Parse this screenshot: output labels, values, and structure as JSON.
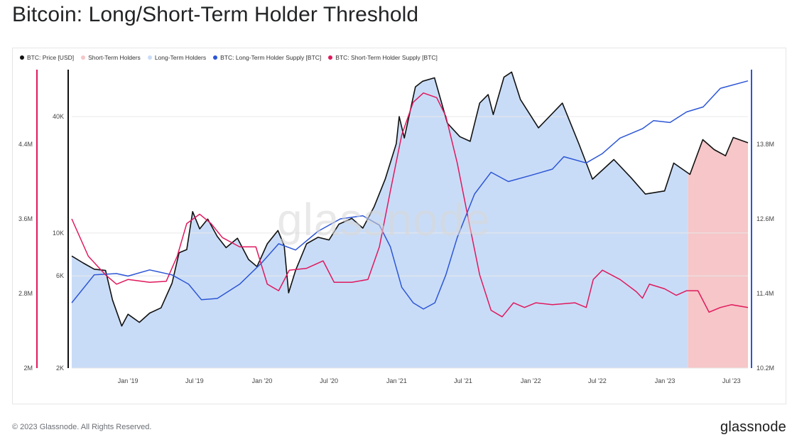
{
  "title": "Bitcoin: Long/Short-Term Holder Threshold",
  "footer": {
    "copyright": "© 2023 Glassnode. All Rights Reserved.",
    "logo": "glassnode"
  },
  "watermark": "glassnode",
  "legend": [
    {
      "label": "BTC: Price [USD]",
      "color": "#111111"
    },
    {
      "label": "Short-Term Holders",
      "color": "#f6c6c8"
    },
    {
      "label": "Long-Term Holders",
      "color": "#c9dcf7"
    },
    {
      "label": "BTC: Long-Term Holder Supply [BTC]",
      "color": "#2c56d6"
    },
    {
      "label": "BTC: Short-Term Holder Supply [BTC]",
      "color": "#e0185d"
    }
  ],
  "chart_data": {
    "type": "line",
    "x_ticks": [
      "Jan '19",
      "Jul '19",
      "Jan '20",
      "Jul '20",
      "Jan '21",
      "Jul '21",
      "Jan '22",
      "Jul '22",
      "Jan '23",
      "Jul '23"
    ],
    "x_range": [
      "2018-08-01",
      "2023-08-15"
    ],
    "axes": {
      "sth_supply_axis": {
        "side": "left-outer",
        "ticks": [
          "2M",
          "2.8M",
          "3.6M",
          "4.4M"
        ],
        "values": [
          2000000,
          2800000,
          3600000,
          4400000
        ],
        "range": [
          2000000,
          5200000
        ],
        "color": "#e0185d"
      },
      "price_axis": {
        "side": "left-inner",
        "scale": "log",
        "ticks": [
          "2K",
          "6K",
          "10K",
          "40K"
        ],
        "values": [
          2000,
          6000,
          10000,
          40000
        ],
        "range": [
          2000,
          70000
        ],
        "color": "#111111"
      },
      "lth_supply_axis": {
        "side": "right",
        "ticks": [
          "10.2M",
          "11.4M",
          "12.6M",
          "13.8M"
        ],
        "values": [
          10200000,
          11400000,
          12600000,
          13800000
        ],
        "range": [
          10200000,
          15000000
        ],
        "color": "#2c56d6"
      }
    },
    "regime_change_date": "2023-03-05",
    "regimes": [
      {
        "name": "Long-Term Holders",
        "from": "2018-08-01",
        "to": "2023-03-05",
        "color": "#c9dcf7"
      },
      {
        "name": "Short-Term Holders",
        "from": "2023-03-05",
        "to": "2023-08-15",
        "color": "#f6c6c8"
      }
    ],
    "series": [
      {
        "name": "BTC: Price [USD]",
        "axis": "price_axis",
        "color": "#111111",
        "points": [
          [
            "2018-08-01",
            7600
          ],
          [
            "2018-09-01",
            7000
          ],
          [
            "2018-10-01",
            6500
          ],
          [
            "2018-11-01",
            6400
          ],
          [
            "2018-11-20",
            4500
          ],
          [
            "2018-12-15",
            3300
          ],
          [
            "2019-01-01",
            3800
          ],
          [
            "2019-02-01",
            3450
          ],
          [
            "2019-03-01",
            3850
          ],
          [
            "2019-04-01",
            4100
          ],
          [
            "2019-05-01",
            5500
          ],
          [
            "2019-05-20",
            7900
          ],
          [
            "2019-06-10",
            8200
          ],
          [
            "2019-06-26",
            12900
          ],
          [
            "2019-07-15",
            10500
          ],
          [
            "2019-08-06",
            11800
          ],
          [
            "2019-09-01",
            9600
          ],
          [
            "2019-09-25",
            8400
          ],
          [
            "2019-10-26",
            9400
          ],
          [
            "2019-11-25",
            7300
          ],
          [
            "2019-12-18",
            6700
          ],
          [
            "2020-01-15",
            8800
          ],
          [
            "2020-02-13",
            10300
          ],
          [
            "2020-03-01",
            8600
          ],
          [
            "2020-03-13",
            4900
          ],
          [
            "2020-04-01",
            6400
          ],
          [
            "2020-05-01",
            8800
          ],
          [
            "2020-06-01",
            9500
          ],
          [
            "2020-07-01",
            9200
          ],
          [
            "2020-07-28",
            11100
          ],
          [
            "2020-09-01",
            11900
          ],
          [
            "2020-10-01",
            10600
          ],
          [
            "2020-11-01",
            13700
          ],
          [
            "2020-12-01",
            19000
          ],
          [
            "2020-12-31",
            29000
          ],
          [
            "2021-01-08",
            40000
          ],
          [
            "2021-01-22",
            31000
          ],
          [
            "2021-02-21",
            57000
          ],
          [
            "2021-03-13",
            61000
          ],
          [
            "2021-04-14",
            63500
          ],
          [
            "2021-05-19",
            37000
          ],
          [
            "2021-06-22",
            31500
          ],
          [
            "2021-07-20",
            29800
          ],
          [
            "2021-08-15",
            47000
          ],
          [
            "2021-09-07",
            52000
          ],
          [
            "2021-09-21",
            41000
          ],
          [
            "2021-10-20",
            64000
          ],
          [
            "2021-11-10",
            68000
          ],
          [
            "2021-12-04",
            49000
          ],
          [
            "2022-01-22",
            35000
          ],
          [
            "2022-03-28",
            47000
          ],
          [
            "2022-05-12",
            28900
          ],
          [
            "2022-06-18",
            19000
          ],
          [
            "2022-08-15",
            24000
          ],
          [
            "2022-10-01",
            19300
          ],
          [
            "2022-11-09",
            15900
          ],
          [
            "2022-12-31",
            16500
          ],
          [
            "2023-01-25",
            23000
          ],
          [
            "2023-03-10",
            20100
          ],
          [
            "2023-04-14",
            30400
          ],
          [
            "2023-05-15",
            27000
          ],
          [
            "2023-06-15",
            25100
          ],
          [
            "2023-07-06",
            31200
          ],
          [
            "2023-08-15",
            29300
          ]
        ]
      },
      {
        "name": "BTC: Long-Term Holder Supply [BTC]",
        "axis": "lth_supply_axis",
        "color": "#2c56d6",
        "points": [
          [
            "2018-08-01",
            11250000
          ],
          [
            "2018-10-01",
            11700000
          ],
          [
            "2018-12-01",
            11720000
          ],
          [
            "2019-01-01",
            11680000
          ],
          [
            "2019-03-01",
            11780000
          ],
          [
            "2019-05-01",
            11700000
          ],
          [
            "2019-06-15",
            11550000
          ],
          [
            "2019-07-20",
            11300000
          ],
          [
            "2019-09-01",
            11320000
          ],
          [
            "2019-11-01",
            11550000
          ],
          [
            "2020-01-01",
            11900000
          ],
          [
            "2020-02-15",
            12200000
          ],
          [
            "2020-04-01",
            12100000
          ],
          [
            "2020-06-01",
            12400000
          ],
          [
            "2020-08-01",
            12600000
          ],
          [
            "2020-10-01",
            12650000
          ],
          [
            "2020-11-15",
            12500000
          ],
          [
            "2020-12-15",
            12150000
          ],
          [
            "2021-01-15",
            11500000
          ],
          [
            "2021-02-15",
            11250000
          ],
          [
            "2021-03-15",
            11150000
          ],
          [
            "2021-04-15",
            11250000
          ],
          [
            "2021-05-15",
            11700000
          ],
          [
            "2021-06-15",
            12300000
          ],
          [
            "2021-08-01",
            13000000
          ],
          [
            "2021-09-15",
            13350000
          ],
          [
            "2021-11-01",
            13200000
          ],
          [
            "2022-01-01",
            13300000
          ],
          [
            "2022-03-01",
            13400000
          ],
          [
            "2022-04-01",
            13600000
          ],
          [
            "2022-06-01",
            13500000
          ],
          [
            "2022-07-15",
            13650000
          ],
          [
            "2022-09-01",
            13900000
          ],
          [
            "2022-11-01",
            14050000
          ],
          [
            "2022-12-01",
            14180000
          ],
          [
            "2023-01-15",
            14150000
          ],
          [
            "2023-03-01",
            14320000
          ],
          [
            "2023-04-15",
            14400000
          ],
          [
            "2023-06-01",
            14700000
          ],
          [
            "2023-08-15",
            14820000
          ]
        ]
      },
      {
        "name": "BTC: Short-Term Holder Supply [BTC]",
        "axis": "sth_supply_axis",
        "color": "#e0185d",
        "points": [
          [
            "2018-08-01",
            3600000
          ],
          [
            "2018-09-15",
            3200000
          ],
          [
            "2018-11-01",
            3000000
          ],
          [
            "2018-12-01",
            2900000
          ],
          [
            "2019-01-01",
            2950000
          ],
          [
            "2019-03-01",
            2920000
          ],
          [
            "2019-04-15",
            2930000
          ],
          [
            "2019-05-15",
            3200000
          ],
          [
            "2019-06-10",
            3550000
          ],
          [
            "2019-07-15",
            3650000
          ],
          [
            "2019-08-15",
            3550000
          ],
          [
            "2019-09-15",
            3400000
          ],
          [
            "2019-11-01",
            3300000
          ],
          [
            "2019-12-15",
            3300000
          ],
          [
            "2020-01-15",
            2900000
          ],
          [
            "2020-02-15",
            2830000
          ],
          [
            "2020-03-15",
            3050000
          ],
          [
            "2020-05-01",
            3070000
          ],
          [
            "2020-06-15",
            3150000
          ],
          [
            "2020-07-15",
            2920000
          ],
          [
            "2020-09-01",
            2920000
          ],
          [
            "2020-10-15",
            2950000
          ],
          [
            "2020-11-15",
            3300000
          ],
          [
            "2020-12-15",
            3900000
          ],
          [
            "2021-01-15",
            4500000
          ],
          [
            "2021-02-15",
            4850000
          ],
          [
            "2021-03-15",
            4950000
          ],
          [
            "2021-04-20",
            4900000
          ],
          [
            "2021-05-15",
            4700000
          ],
          [
            "2021-06-15",
            4200000
          ],
          [
            "2021-07-15",
            3600000
          ],
          [
            "2021-08-15",
            3000000
          ],
          [
            "2021-09-15",
            2620000
          ],
          [
            "2021-10-15",
            2550000
          ],
          [
            "2021-11-15",
            2700000
          ],
          [
            "2021-12-15",
            2650000
          ],
          [
            "2022-01-15",
            2700000
          ],
          [
            "2022-03-01",
            2680000
          ],
          [
            "2022-05-01",
            2700000
          ],
          [
            "2022-06-01",
            2650000
          ],
          [
            "2022-06-20",
            2950000
          ],
          [
            "2022-07-15",
            3050000
          ],
          [
            "2022-09-01",
            2950000
          ],
          [
            "2022-10-15",
            2820000
          ],
          [
            "2022-11-01",
            2750000
          ],
          [
            "2022-11-20",
            2900000
          ],
          [
            "2022-12-31",
            2850000
          ],
          [
            "2023-02-01",
            2780000
          ],
          [
            "2023-03-01",
            2830000
          ],
          [
            "2023-04-01",
            2830000
          ],
          [
            "2023-05-01",
            2600000
          ],
          [
            "2023-06-01",
            2650000
          ],
          [
            "2023-07-01",
            2680000
          ],
          [
            "2023-08-15",
            2650000
          ]
        ]
      }
    ],
    "grid": true,
    "legend_position": "top-left"
  }
}
